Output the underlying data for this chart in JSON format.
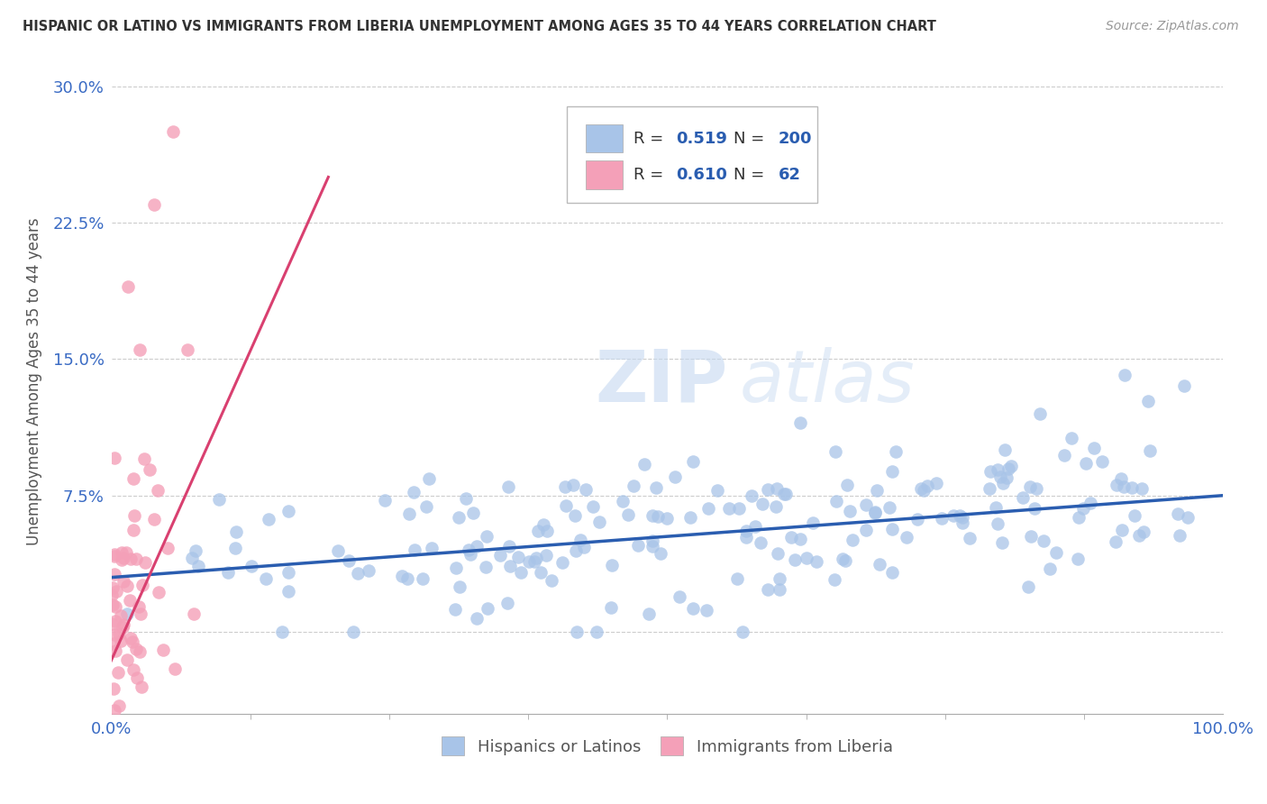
{
  "title": "HISPANIC OR LATINO VS IMMIGRANTS FROM LIBERIA UNEMPLOYMENT AMONG AGES 35 TO 44 YEARS CORRELATION CHART",
  "source": "Source: ZipAtlas.com",
  "ylabel": "Unemployment Among Ages 35 to 44 years",
  "xlim": [
    0.0,
    1.0
  ],
  "ylim": [
    -0.045,
    0.32
  ],
  "yticks": [
    0.0,
    0.075,
    0.15,
    0.225,
    0.3
  ],
  "ytick_labels": [
    "",
    "7.5%",
    "15.0%",
    "22.5%",
    "30.0%"
  ],
  "xtick_labels": [
    "0.0%",
    "100.0%"
  ],
  "blue_R": 0.519,
  "blue_N": 200,
  "pink_R": 0.61,
  "pink_N": 62,
  "blue_color": "#a8c4e8",
  "pink_color": "#f4a0b8",
  "blue_line_color": "#2a5db0",
  "pink_line_color": "#d94070",
  "watermark_zip": "ZIP",
  "watermark_atlas": "atlas",
  "background_color": "#ffffff",
  "grid_color": "#cccccc"
}
